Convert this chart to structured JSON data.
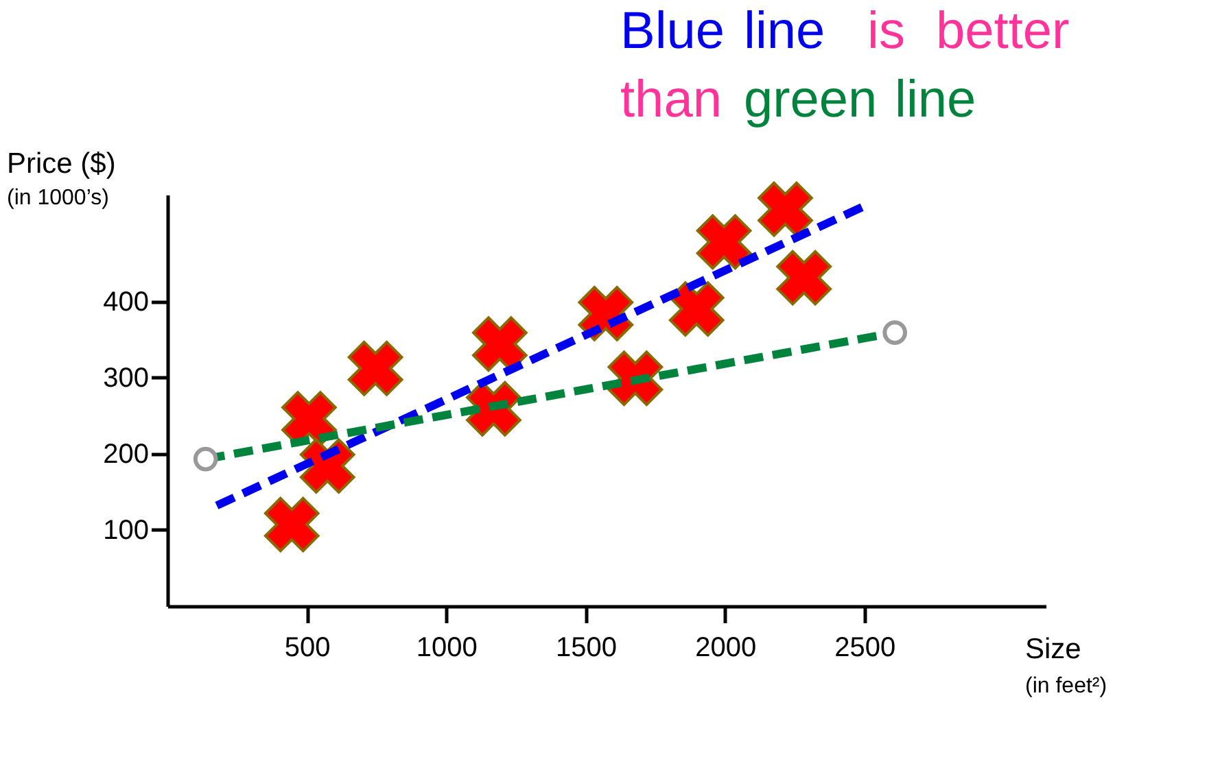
{
  "chart_data": {
    "type": "scatter",
    "title": "Blue line is better than green line",
    "xlabel": "Size (in feet²)",
    "ylabel": "Price ($) (in 1000’s)",
    "xlim": [
      0,
      3150
    ],
    "ylim": [
      0,
      540
    ],
    "xticks": [
      500,
      1000,
      1500,
      2000,
      2500
    ],
    "yticks": [
      100,
      200,
      300,
      400
    ],
    "grid": false,
    "series": [
      {
        "type": "scatter",
        "marker": "cross",
        "color": "#ff0000",
        "x": [
          446,
          508,
          574,
          746,
          1170,
          1192,
          1572,
          1678,
          1898,
          1996,
          2216,
          2283
        ],
        "values": [
          107,
          246,
          184,
          312,
          259,
          344,
          384,
          299,
          390,
          478,
          521,
          431
        ]
      },
      {
        "type": "line",
        "line_style": "dashed",
        "marker": "none",
        "color": "#0000ee",
        "x": [
          177,
          2499
        ],
        "values": [
          132,
          525
        ]
      },
      {
        "type": "line",
        "line_style": "dashed",
        "marker": "circle",
        "color": "#00843d",
        "x": [
          137,
          2609
        ],
        "values": [
          193,
          359
        ]
      }
    ]
  }
}
